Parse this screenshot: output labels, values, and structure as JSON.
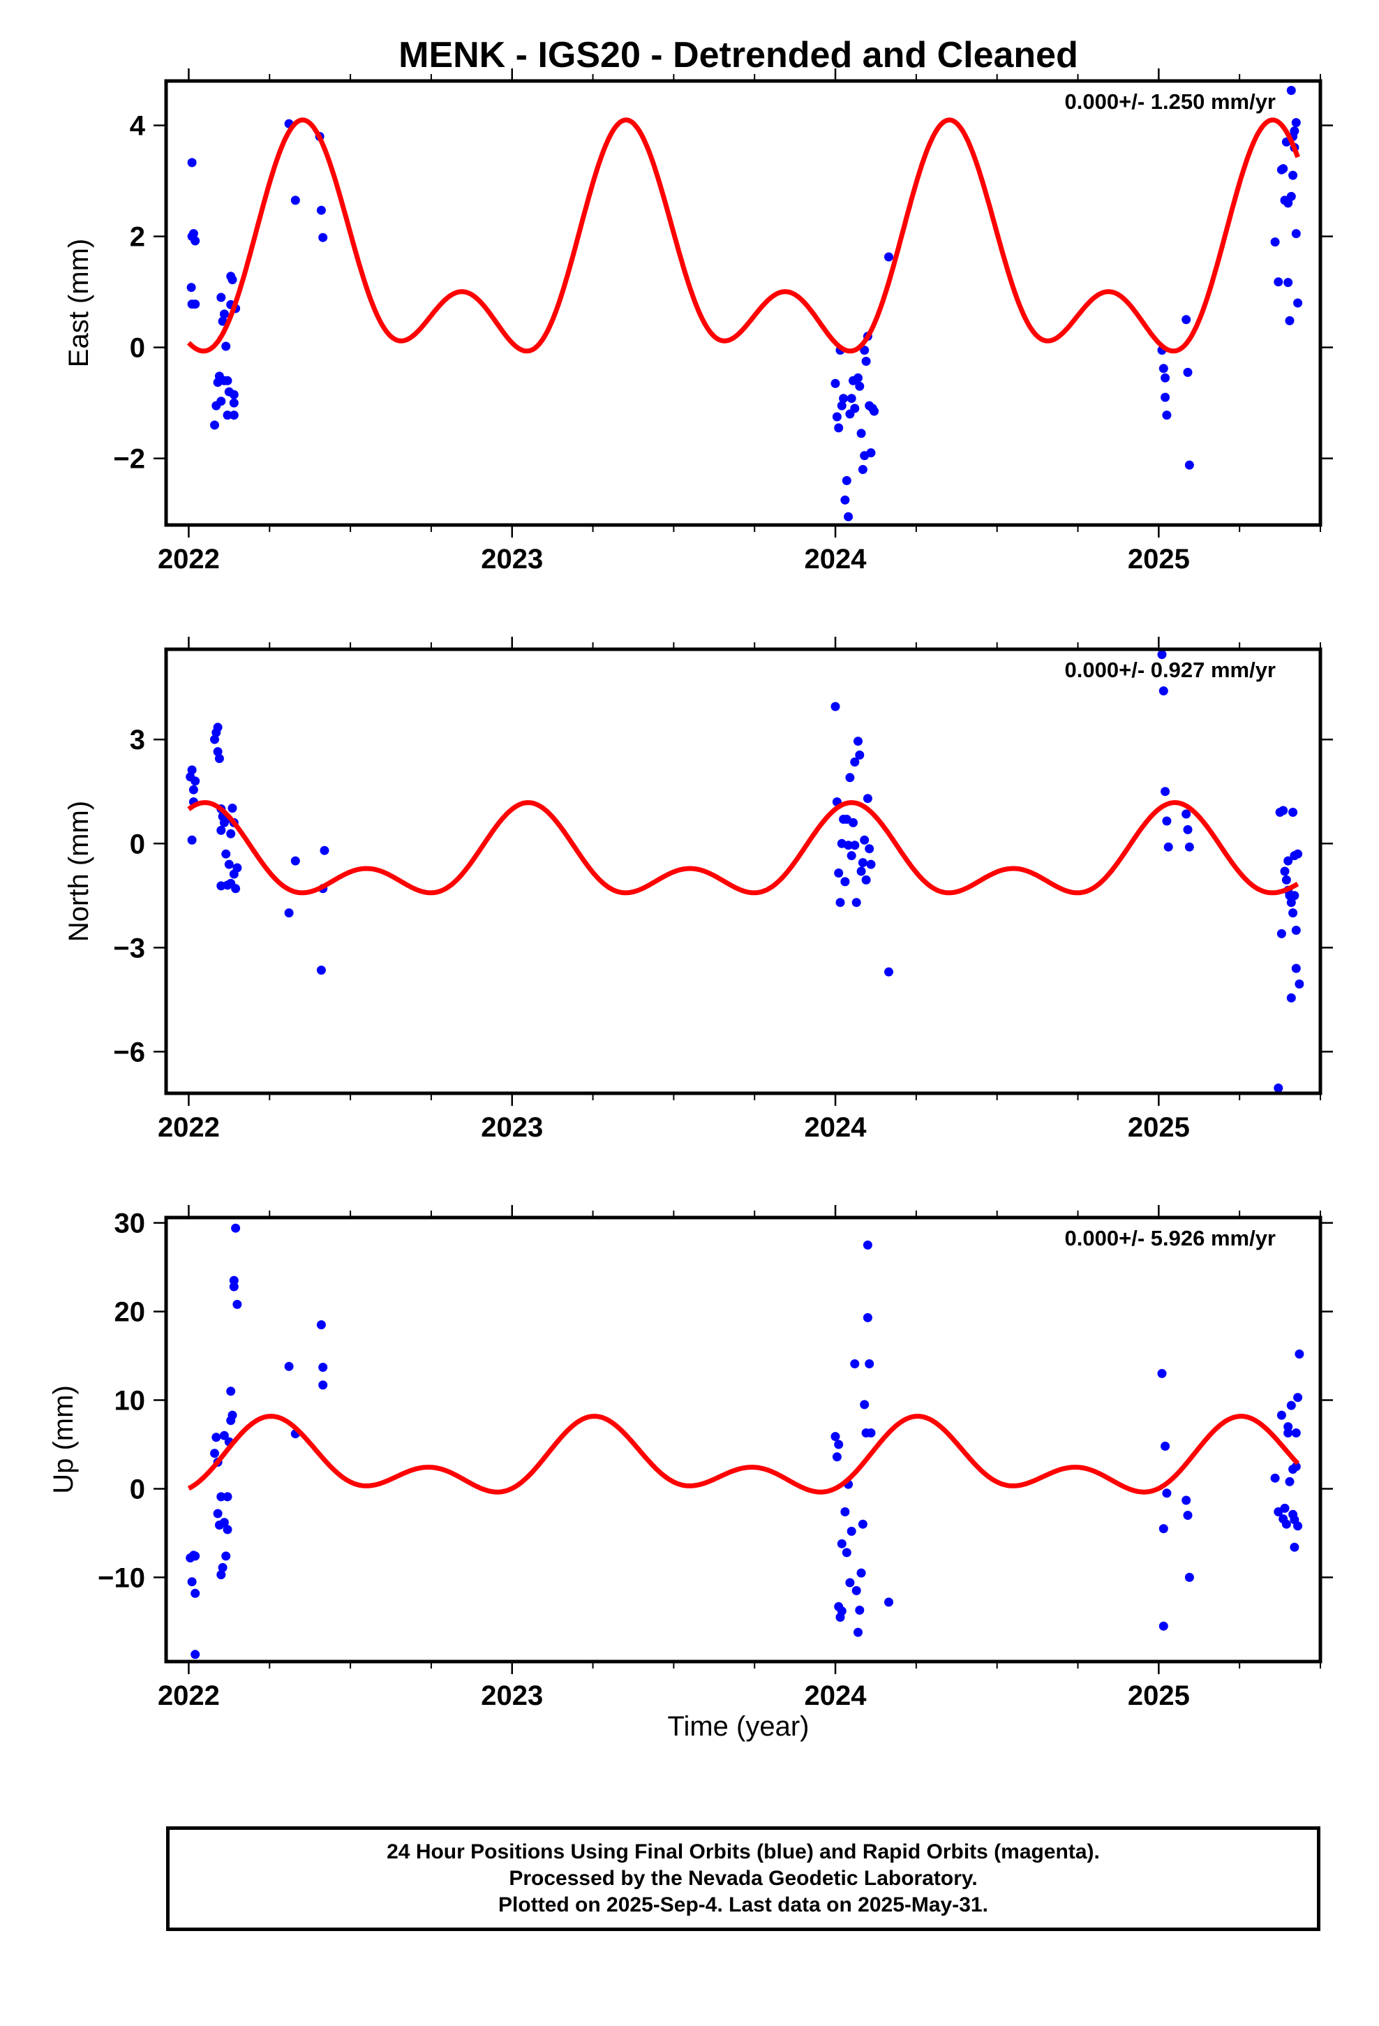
{
  "title": "MENK - IGS20 - Detrended and Cleaned",
  "xlabel": "Time (year)",
  "colors": {
    "points": "#0000ff",
    "model": "#ff0000",
    "frame": "#000000"
  },
  "caption": {
    "line1": "24 Hour Positions Using Final Orbits (blue) and Rapid Orbits (magenta).",
    "line2": "Processed by the Nevada Geodetic Laboratory.",
    "line3": "Plotted on 2025-Sep-4. Last data on 2025-May-31."
  },
  "chart_data": [
    {
      "type": "scatter",
      "ylabel": "East (mm)",
      "rate_label": "0.000+/- 1.250 mm/yr",
      "xlim": [
        2021.93,
        2025.5
      ],
      "ylim": [
        -3.2,
        4.8
      ],
      "xticks": [
        2022,
        2023,
        2024,
        2025
      ],
      "yticks": [
        -2,
        0,
        2,
        4
      ],
      "model": {
        "mean": 1.42,
        "annual_amp": 1.55,
        "annual_peak": 0.36,
        "semi_amp": 1.13,
        "semi_peak": 0.35
      },
      "points": [
        [
          2022.01,
          3.33
        ],
        [
          2022.01,
          2.0
        ],
        [
          2022.015,
          2.05
        ],
        [
          2022.02,
          1.92
        ],
        [
          2022.008,
          1.08
        ],
        [
          2022.01,
          0.78
        ],
        [
          2022.02,
          0.78
        ],
        [
          2022.08,
          -1.4
        ],
        [
          2022.085,
          -1.05
        ],
        [
          2022.09,
          -0.63
        ],
        [
          2022.095,
          -0.52
        ],
        [
          2022.1,
          -0.97
        ],
        [
          2022.1,
          0.9
        ],
        [
          2022.105,
          0.47
        ],
        [
          2022.11,
          0.6
        ],
        [
          2022.11,
          -0.6
        ],
        [
          2022.115,
          0.02
        ],
        [
          2022.12,
          -0.6
        ],
        [
          2022.12,
          -1.22
        ],
        [
          2022.125,
          -0.8
        ],
        [
          2022.13,
          1.28
        ],
        [
          2022.13,
          0.77
        ],
        [
          2022.135,
          1.22
        ],
        [
          2022.14,
          -1.0
        ],
        [
          2022.14,
          -0.85
        ],
        [
          2022.14,
          -1.22
        ],
        [
          2022.145,
          0.7
        ],
        [
          2022.31,
          4.03
        ],
        [
          2022.33,
          2.65
        ],
        [
          2022.405,
          3.8
        ],
        [
          2022.41,
          2.47
        ],
        [
          2022.415,
          1.98
        ],
        [
          2024.0,
          -0.65
        ],
        [
          2024.005,
          -1.25
        ],
        [
          2024.01,
          -1.45
        ],
        [
          2024.015,
          -0.05
        ],
        [
          2024.02,
          -1.05
        ],
        [
          2024.025,
          -0.92
        ],
        [
          2024.03,
          -2.75
        ],
        [
          2024.035,
          -2.4
        ],
        [
          2024.04,
          -3.05
        ],
        [
          2024.045,
          -1.2
        ],
        [
          2024.05,
          -0.92
        ],
        [
          2024.055,
          -0.6
        ],
        [
          2024.06,
          -1.1
        ],
        [
          2024.07,
          -0.55
        ],
        [
          2024.075,
          -0.7
        ],
        [
          2024.08,
          -1.55
        ],
        [
          2024.085,
          -2.2
        ],
        [
          2024.09,
          -1.95
        ],
        [
          2024.095,
          -0.25
        ],
        [
          2024.1,
          0.2
        ],
        [
          2024.105,
          -1.05
        ],
        [
          2024.11,
          -1.9
        ],
        [
          2024.115,
          -1.1
        ],
        [
          2024.12,
          -1.15
        ],
        [
          2024.09,
          -0.05
        ],
        [
          2024.165,
          1.63
        ],
        [
          2025.01,
          -0.05
        ],
        [
          2025.015,
          -0.38
        ],
        [
          2025.02,
          -0.9
        ],
        [
          2025.025,
          -1.22
        ],
        [
          2025.02,
          -0.55
        ],
        [
          2025.085,
          0.5
        ],
        [
          2025.09,
          -0.45
        ],
        [
          2025.095,
          -2.12
        ],
        [
          2025.36,
          1.9
        ],
        [
          2025.37,
          1.18
        ],
        [
          2025.38,
          3.2
        ],
        [
          2025.385,
          3.22
        ],
        [
          2025.39,
          2.65
        ],
        [
          2025.395,
          3.7
        ],
        [
          2025.4,
          2.6
        ],
        [
          2025.4,
          1.17
        ],
        [
          2025.405,
          0.48
        ],
        [
          2025.41,
          2.72
        ],
        [
          2025.41,
          4.63
        ],
        [
          2025.415,
          3.1
        ],
        [
          2025.415,
          3.8
        ],
        [
          2025.42,
          3.6
        ],
        [
          2025.42,
          3.9
        ],
        [
          2025.425,
          4.05
        ],
        [
          2025.425,
          2.05
        ],
        [
          2025.43,
          0.8
        ]
      ]
    },
    {
      "type": "scatter",
      "ylabel": "North (mm)",
      "rate_label": "0.000+/- 0.927 mm/yr",
      "xlim": [
        2021.93,
        2025.5
      ],
      "ylim": [
        -7.2,
        5.6
      ],
      "xticks": [
        2022,
        2023,
        2024,
        2025
      ],
      "yticks": [
        -6,
        -3,
        0,
        3
      ],
      "model": {
        "mean": -0.52,
        "annual_amp": 0.95,
        "annual_peak": 0.05,
        "semi_amp": 0.75,
        "semi_peak": 0.55
      },
      "points": [
        [
          2022.005,
          1.92
        ],
        [
          2022.01,
          2.12
        ],
        [
          2022.015,
          1.55
        ],
        [
          2022.015,
          1.2
        ],
        [
          2022.02,
          1.8
        ],
        [
          2022.01,
          0.1
        ],
        [
          2022.08,
          3.0
        ],
        [
          2022.085,
          3.2
        ],
        [
          2022.09,
          3.35
        ],
        [
          2022.09,
          2.65
        ],
        [
          2022.095,
          2.45
        ],
        [
          2022.1,
          1.0
        ],
        [
          2022.1,
          0.38
        ],
        [
          2022.105,
          0.78
        ],
        [
          2022.11,
          0.6
        ],
        [
          2022.115,
          -0.3
        ],
        [
          2022.12,
          -1.2
        ],
        [
          2022.12,
          0.72
        ],
        [
          2022.125,
          -0.6
        ],
        [
          2022.13,
          -1.15
        ],
        [
          2022.135,
          1.02
        ],
        [
          2022.14,
          0.6
        ],
        [
          2022.14,
          -0.88
        ],
        [
          2022.145,
          -1.3
        ],
        [
          2022.15,
          -0.7
        ],
        [
          2022.1,
          -1.22
        ],
        [
          2022.13,
          0.28
        ],
        [
          2022.31,
          -2.0
        ],
        [
          2022.33,
          -0.5
        ],
        [
          2022.41,
          -3.65
        ],
        [
          2022.415,
          -1.3
        ],
        [
          2022.42,
          -0.2
        ],
        [
          2024.0,
          3.95
        ],
        [
          2024.005,
          1.2
        ],
        [
          2024.01,
          -0.85
        ],
        [
          2024.015,
          -1.7
        ],
        [
          2024.02,
          0.0
        ],
        [
          2024.025,
          0.7
        ],
        [
          2024.03,
          -1.1
        ],
        [
          2024.035,
          0.7
        ],
        [
          2024.04,
          -0.05
        ],
        [
          2024.045,
          1.9
        ],
        [
          2024.05,
          -0.35
        ],
        [
          2024.055,
          0.6
        ],
        [
          2024.06,
          -0.05
        ],
        [
          2024.065,
          -1.7
        ],
        [
          2024.07,
          2.95
        ],
        [
          2024.075,
          2.55
        ],
        [
          2024.08,
          -0.8
        ],
        [
          2024.085,
          -0.55
        ],
        [
          2024.09,
          0.1
        ],
        [
          2024.095,
          -1.05
        ],
        [
          2024.1,
          1.3
        ],
        [
          2024.105,
          -0.15
        ],
        [
          2024.11,
          -0.6
        ],
        [
          2024.06,
          2.35
        ],
        [
          2024.165,
          -3.7
        ],
        [
          2025.01,
          5.45
        ],
        [
          2025.015,
          4.4
        ],
        [
          2025.02,
          1.5
        ],
        [
          2025.025,
          0.65
        ],
        [
          2025.03,
          -0.1
        ],
        [
          2025.085,
          0.85
        ],
        [
          2025.09,
          0.4
        ],
        [
          2025.095,
          -0.1
        ],
        [
          2025.37,
          -7.05
        ],
        [
          2025.375,
          0.9
        ],
        [
          2025.38,
          -2.6
        ],
        [
          2025.385,
          0.95
        ],
        [
          2025.39,
          -0.8
        ],
        [
          2025.395,
          -1.05
        ],
        [
          2025.4,
          -1.35
        ],
        [
          2025.4,
          -0.5
        ],
        [
          2025.405,
          -1.5
        ],
        [
          2025.41,
          -4.45
        ],
        [
          2025.415,
          -2.0
        ],
        [
          2025.415,
          0.9
        ],
        [
          2025.42,
          -0.35
        ],
        [
          2025.42,
          -1.5
        ],
        [
          2025.425,
          -2.5
        ],
        [
          2025.425,
          -3.6
        ],
        [
          2025.43,
          -0.3
        ],
        [
          2025.435,
          -4.05
        ],
        [
          2025.41,
          -1.7
        ]
      ]
    },
    {
      "type": "scatter",
      "ylabel": "Up (mm)",
      "rate_label": "0.000+/- 5.926 mm/yr",
      "xlim": [
        2021.93,
        2025.5
      ],
      "ylim": [
        -19.5,
        30.6
      ],
      "xticks": [
        2022,
        2023,
        2024,
        2025
      ],
      "yticks": [
        -10,
        0,
        10,
        20,
        30
      ],
      "model": {
        "mean": 2.85,
        "annual_amp": 2.9,
        "annual_peak": 0.27,
        "semi_amp": 2.45,
        "semi_peak": 0.25
      },
      "points": [
        [
          2022.005,
          -7.8
        ],
        [
          2022.01,
          -10.5
        ],
        [
          2022.015,
          -7.5
        ],
        [
          2022.02,
          -11.8
        ],
        [
          2022.02,
          -7.6
        ],
        [
          2022.02,
          -18.7
        ],
        [
          2022.08,
          4.0
        ],
        [
          2022.085,
          5.8
        ],
        [
          2022.09,
          -2.8
        ],
        [
          2022.09,
          3.0
        ],
        [
          2022.095,
          -4.1
        ],
        [
          2022.1,
          -9.7
        ],
        [
          2022.1,
          -0.9
        ],
        [
          2022.105,
          -8.9
        ],
        [
          2022.11,
          6.0
        ],
        [
          2022.11,
          -3.8
        ],
        [
          2022.115,
          -7.6
        ],
        [
          2022.12,
          -0.9
        ],
        [
          2022.12,
          -4.6
        ],
        [
          2022.125,
          5.3
        ],
        [
          2022.13,
          11.0
        ],
        [
          2022.13,
          7.7
        ],
        [
          2022.135,
          8.3
        ],
        [
          2022.14,
          23.5
        ],
        [
          2022.14,
          22.8
        ],
        [
          2022.145,
          29.4
        ],
        [
          2022.15,
          20.8
        ],
        [
          2022.31,
          13.8
        ],
        [
          2022.33,
          6.2
        ],
        [
          2022.41,
          18.5
        ],
        [
          2022.415,
          13.7
        ],
        [
          2022.415,
          11.7
        ],
        [
          2024.0,
          5.9
        ],
        [
          2024.005,
          3.6
        ],
        [
          2024.01,
          5.0
        ],
        [
          2024.01,
          -13.3
        ],
        [
          2024.015,
          -14.5
        ],
        [
          2024.02,
          -13.8
        ],
        [
          2024.02,
          -6.2
        ],
        [
          2024.03,
          -2.6
        ],
        [
          2024.035,
          -7.2
        ],
        [
          2024.04,
          0.5
        ],
        [
          2024.045,
          -10.6
        ],
        [
          2024.05,
          -4.8
        ],
        [
          2024.06,
          14.1
        ],
        [
          2024.065,
          -11.5
        ],
        [
          2024.07,
          -16.2
        ],
        [
          2024.075,
          -13.7
        ],
        [
          2024.08,
          -9.5
        ],
        [
          2024.085,
          -4.0
        ],
        [
          2024.09,
          9.5
        ],
        [
          2024.095,
          6.3
        ],
        [
          2024.1,
          27.5
        ],
        [
          2024.1,
          19.3
        ],
        [
          2024.105,
          14.1
        ],
        [
          2024.11,
          6.3
        ],
        [
          2024.165,
          -12.8
        ],
        [
          2025.01,
          13.0
        ],
        [
          2025.015,
          -4.5
        ],
        [
          2025.015,
          -15.5
        ],
        [
          2025.02,
          4.8
        ],
        [
          2025.025,
          -0.5
        ],
        [
          2025.085,
          -1.3
        ],
        [
          2025.09,
          -3.0
        ],
        [
          2025.095,
          -10.0
        ],
        [
          2025.36,
          1.2
        ],
        [
          2025.37,
          -2.6
        ],
        [
          2025.38,
          8.3
        ],
        [
          2025.385,
          -3.4
        ],
        [
          2025.39,
          -2.2
        ],
        [
          2025.395,
          -4.0
        ],
        [
          2025.4,
          7.0
        ],
        [
          2025.4,
          6.3
        ],
        [
          2025.405,
          0.8
        ],
        [
          2025.41,
          9.4
        ],
        [
          2025.415,
          -2.9
        ],
        [
          2025.415,
          2.2
        ],
        [
          2025.42,
          -3.5
        ],
        [
          2025.42,
          -6.6
        ],
        [
          2025.425,
          6.3
        ],
        [
          2025.425,
          2.5
        ],
        [
          2025.43,
          10.3
        ],
        [
          2025.435,
          15.2
        ],
        [
          2025.43,
          -4.2
        ]
      ]
    }
  ]
}
